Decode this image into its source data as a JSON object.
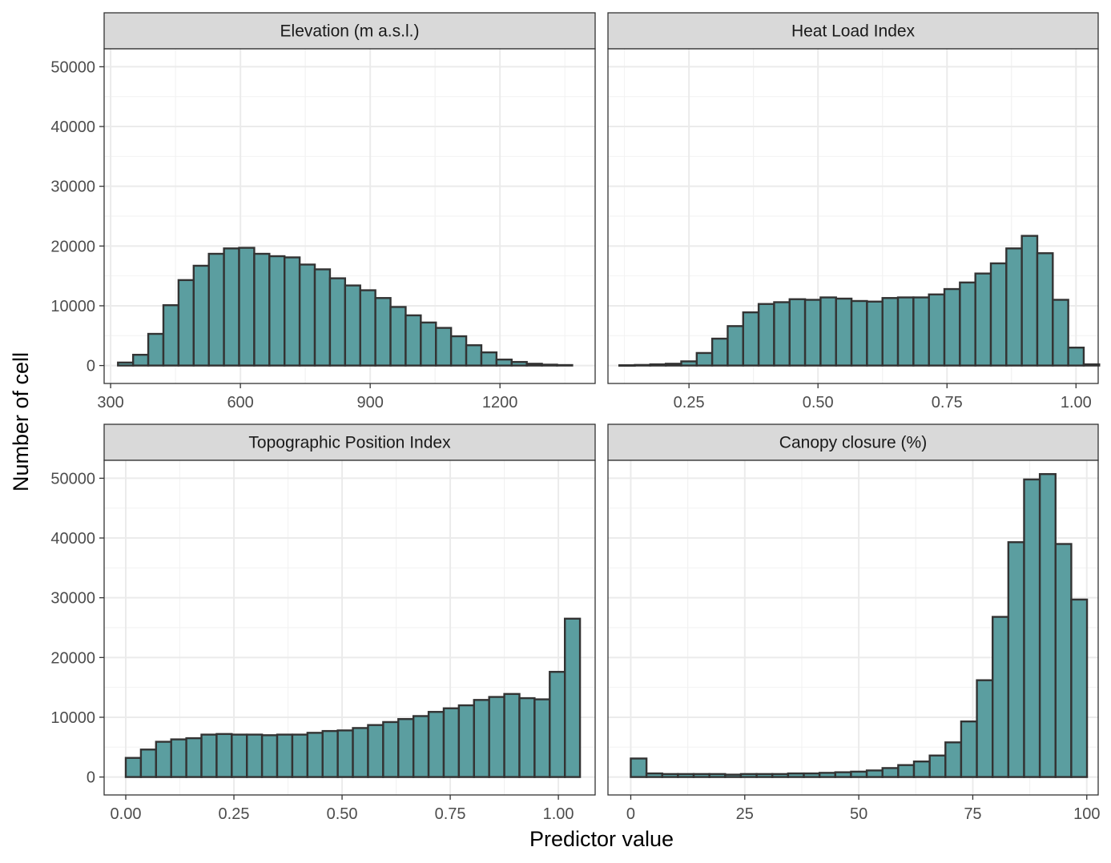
{
  "chart_data": {
    "type": "bar",
    "xlabel": "Predictor value",
    "ylabel": "Number of cell",
    "ylim": [
      -3000,
      53000
    ],
    "y_ticks": [
      0,
      10000,
      20000,
      30000,
      40000,
      50000
    ],
    "y_tick_labels": [
      "0",
      "10000",
      "20000",
      "30000",
      "40000",
      "50000"
    ],
    "grid": true,
    "bar_fill": "#5b9ea0",
    "bar_stroke": "#333333",
    "panels": [
      {
        "title": "Elevation (m a.s.l.)",
        "xlim": [
          285,
          1420
        ],
        "x_ticks": [
          300,
          600,
          900,
          1200
        ],
        "x_tick_labels": [
          "300",
          "600",
          "900",
          "1200"
        ],
        "bin_start": 317,
        "bin_width": 35,
        "values": [
          500,
          1800,
          5300,
          10100,
          14300,
          16700,
          18700,
          19600,
          19700,
          18700,
          18300,
          18100,
          16900,
          16100,
          14600,
          13400,
          12600,
          11300,
          9800,
          8400,
          7200,
          6300,
          4900,
          3400,
          2200,
          1000,
          600,
          300,
          150,
          80
        ]
      },
      {
        "title": "Heat Load Index",
        "xlim": [
          0.093,
          1.043
        ],
        "x_ticks": [
          0.25,
          0.5,
          0.75,
          1.0
        ],
        "x_tick_labels": [
          "0.25",
          "0.50",
          "0.75",
          "1.00"
        ],
        "bin_start": 0.115,
        "bin_width": 0.03,
        "values": [
          50,
          100,
          200,
          300,
          700,
          2100,
          4500,
          6600,
          8900,
          10300,
          10600,
          11100,
          11000,
          11400,
          11200,
          10800,
          10700,
          11300,
          11400,
          11400,
          11900,
          12800,
          13900,
          15400,
          17100,
          19600,
          21700,
          18800,
          11000,
          3000,
          200
        ]
      },
      {
        "title": "Topographic Position Index",
        "xlim": [
          -0.05,
          1.085
        ],
        "x_ticks": [
          0.0,
          0.25,
          0.5,
          0.75,
          1.0
        ],
        "x_tick_labels": [
          "0.00",
          "0.25",
          "0.50",
          "0.75",
          "1.00"
        ],
        "bin_start": 0.0,
        "bin_width": 0.035,
        "values": [
          3200,
          4600,
          5900,
          6300,
          6500,
          7100,
          7200,
          7100,
          7100,
          7000,
          7100,
          7100,
          7400,
          7700,
          7800,
          8200,
          8700,
          9200,
          9700,
          10200,
          10900,
          11500,
          12000,
          12900,
          13400,
          13900,
          13200,
          13000,
          17600,
          26500
        ]
      },
      {
        "title": "Canopy closure (%)",
        "xlim": [
          -5,
          102.5
        ],
        "x_ticks": [
          0,
          25,
          50,
          75,
          100
        ],
        "x_tick_labels": [
          "0",
          "25",
          "50",
          "75",
          "100"
        ],
        "bin_start": 0,
        "bin_width": 3.45,
        "values": [
          3100,
          600,
          500,
          500,
          500,
          500,
          400,
          500,
          500,
          500,
          600,
          600,
          700,
          800,
          900,
          1100,
          1500,
          2000,
          2600,
          3600,
          5800,
          9300,
          16200,
          26800,
          39300,
          49800,
          50700,
          39000,
          29700
        ]
      }
    ]
  }
}
